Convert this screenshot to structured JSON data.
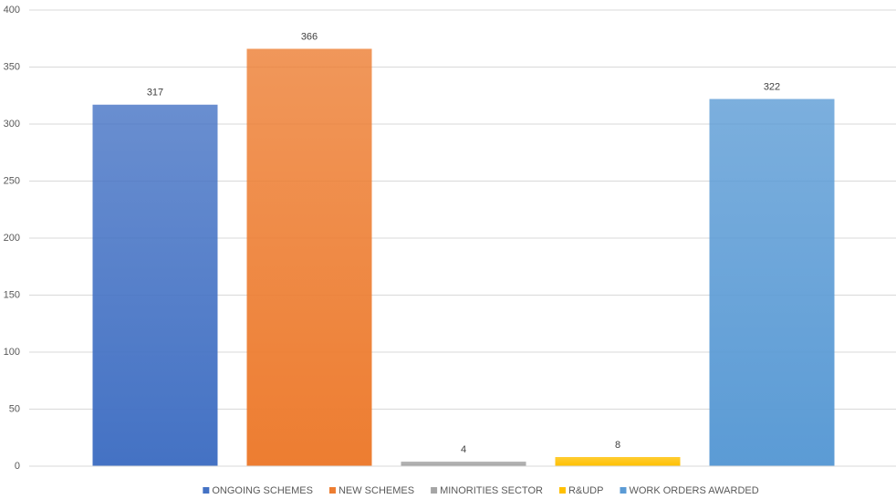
{
  "chart_data": {
    "type": "bar",
    "series": [
      {
        "name": "ONGOING SCHEMES",
        "color": "#4472c4",
        "values": [
          317
        ]
      },
      {
        "name": "NEW SCHEMES",
        "color": "#ed7d31",
        "values": [
          366
        ]
      },
      {
        "name": "MINORITIES SECTOR",
        "color": "#a5a5a5",
        "values": [
          4
        ]
      },
      {
        "name": "R&UDP",
        "color": "#ffc000",
        "values": [
          8
        ]
      },
      {
        "name": "WORK ORDERS AWARDED",
        "color": "#5b9bd5",
        "values": [
          322
        ]
      }
    ],
    "ylim": [
      0,
      400
    ],
    "yticks": [
      0,
      50,
      100,
      150,
      200,
      250,
      300,
      350,
      400
    ],
    "grid": true,
    "legend": "bottom"
  }
}
